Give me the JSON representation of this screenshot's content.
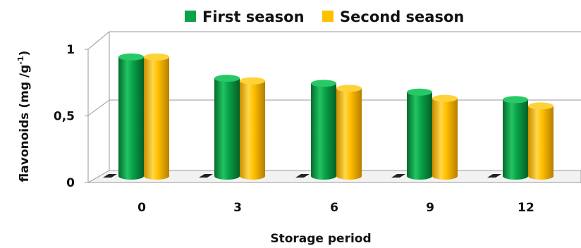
{
  "chart_data": {
    "type": "bar",
    "categories": [
      "0",
      "3",
      "6",
      "9",
      "12"
    ],
    "series": [
      {
        "name": "First season",
        "values": [
          0.95,
          0.78,
          0.74,
          0.67,
          0.61
        ],
        "color": "#0aa34a"
      },
      {
        "name": "Second season",
        "values": [
          0.95,
          0.76,
          0.7,
          0.62,
          0.56
        ],
        "color": "#ffc000"
      }
    ],
    "xlabel": "Storage period",
    "ylabel_main": "flavonoids (mg /g",
    "ylabel_sup": "-1",
    "ylabel_end": ")",
    "ylim": [
      0,
      1
    ],
    "yticks": [
      {
        "value": 0,
        "label": "0"
      },
      {
        "value": 0.5,
        "label": "0,5"
      },
      {
        "value": 1,
        "label": "1"
      }
    ],
    "legend_position": "top",
    "grid": true,
    "style": "3d-cylinder"
  }
}
